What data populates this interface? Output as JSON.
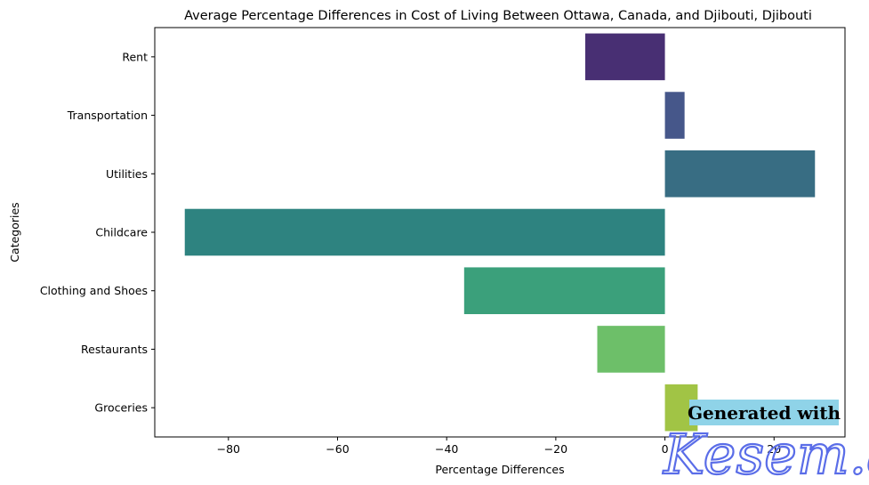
{
  "chart_data": {
    "type": "bar",
    "orientation": "horizontal",
    "title": "Average Percentage Differences in Cost of Living Between Ottawa, Canada, and Djibouti, Djibouti",
    "xlabel": "Percentage Differences",
    "ylabel": "Categories",
    "categories": [
      "Rent",
      "Transportation",
      "Utilities",
      "Childcare",
      "Clothing and Shoes",
      "Restaurants",
      "Groceries"
    ],
    "values": [
      -14.6,
      3.6,
      27.5,
      -88.0,
      -36.8,
      -12.4,
      6.0
    ],
    "colors": [
      "#482f73",
      "#46578a",
      "#386d83",
      "#2e8380",
      "#3ba07b",
      "#6dbf69",
      "#a1c445"
    ],
    "xlim": [
      -93.5,
      33
    ],
    "xticks": [
      -80,
      -60,
      -40,
      -20,
      0,
      20
    ],
    "xtick_labels": [
      "−80",
      "−60",
      "−40",
      "−20",
      "0",
      "20"
    ],
    "grid": false,
    "legend": "none"
  },
  "watermark": {
    "text": "Generated with",
    "brand": "Kesem.ai",
    "badge_color": "#8fd3e8"
  }
}
